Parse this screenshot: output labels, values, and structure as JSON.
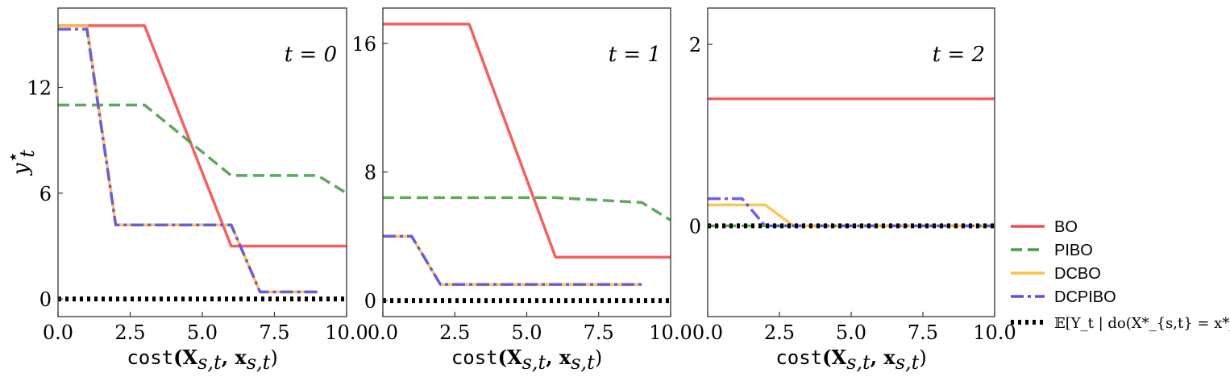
{
  "chart_data": {
    "type": "line",
    "legend_position": "bottom-right, outside panels",
    "legend": [
      {
        "key": "BO",
        "label": "BO",
        "color": "#f24f4f",
        "dash": "solid"
      },
      {
        "key": "PIBO",
        "label": "PIBO",
        "color": "#4b9e47",
        "dash": "dashed"
      },
      {
        "key": "DCBO",
        "label": "DCBO",
        "color": "#ffbf47",
        "dash": "solid"
      },
      {
        "key": "DCPIBO",
        "label": "DCPIBO",
        "color": "#5a50e8",
        "dash": "dashdot"
      },
      {
        "key": "expectation",
        "label": "𝔼[Y_t | do(X*_{s,t} = x*_{s,t})]",
        "color": "#000000",
        "dash": "dotted"
      }
    ],
    "xlabel_func": "cost",
    "xlabel_args": "(X",
    "xlabel_sub": "s,t",
    "xlabel_mid": ", x",
    "xlabel_end": ")",
    "ylabel": "y",
    "ylabel_sup": "⋆",
    "ylabel_sub": "t",
    "panels": [
      {
        "label": "t = 0",
        "xlim": [
          0,
          10
        ],
        "ylim": [
          -1.0,
          16.5
        ],
        "xticks": [
          "0.0",
          "2.5",
          "5.0",
          "7.5",
          "10.0"
        ],
        "yticks": [
          0,
          6,
          12
        ],
        "ytick_labels": [
          "0",
          "6",
          "12"
        ],
        "series": {
          "BO": {
            "x": [
              0,
              3,
              6,
              10
            ],
            "y": [
              15.5,
              15.5,
              3.0,
              3.0
            ]
          },
          "PIBO": {
            "x": [
              0,
              3,
              6,
              9,
              10
            ],
            "y": [
              11.0,
              11.0,
              7.0,
              7.0,
              6.0
            ]
          },
          "DCBO": {
            "x": [
              0,
              1,
              2,
              6,
              7,
              9
            ],
            "y": [
              15.5,
              15.5,
              4.2,
              4.2,
              0.4,
              0.4
            ]
          },
          "DCPIBO": {
            "x": [
              0,
              1,
              2,
              6,
              7,
              9
            ],
            "y": [
              15.3,
              15.3,
              4.2,
              4.2,
              0.4,
              0.4
            ]
          },
          "expectation": {
            "x": [
              0,
              10
            ],
            "y": [
              0,
              0
            ]
          }
        }
      },
      {
        "label": "t = 1",
        "xlim": [
          0,
          10
        ],
        "ylim": [
          -1.0,
          18.2
        ],
        "xticks": [
          "0.0",
          "2.5",
          "5.0",
          "7.5",
          "10.0"
        ],
        "yticks": [
          0,
          8,
          16
        ],
        "ytick_labels": [
          "0",
          "8",
          "16"
        ],
        "series": {
          "BO": {
            "x": [
              0,
              3,
              6,
              10
            ],
            "y": [
              17.2,
              17.2,
              2.7,
              2.7
            ]
          },
          "PIBO": {
            "x": [
              0,
              6,
              9,
              10
            ],
            "y": [
              6.4,
              6.4,
              6.1,
              5.0
            ]
          },
          "DCBO": {
            "x": [
              0,
              1,
              2,
              9
            ],
            "y": [
              4.0,
              4.0,
              1.0,
              1.0
            ]
          },
          "DCPIBO": {
            "x": [
              0,
              1,
              2,
              9
            ],
            "y": [
              4.0,
              4.0,
              1.0,
              1.0
            ]
          },
          "expectation": {
            "x": [
              0,
              10
            ],
            "y": [
              0,
              0
            ]
          }
        }
      },
      {
        "label": "t = 2",
        "xlim": [
          0,
          10
        ],
        "ylim": [
          -1.0,
          2.4
        ],
        "xticks": [
          "0.0",
          "2.5",
          "5.0",
          "7.5",
          "10.0"
        ],
        "yticks": [
          0,
          2
        ],
        "ytick_labels": [
          "0",
          "2"
        ],
        "series": {
          "BO": {
            "x": [
              0,
              10
            ],
            "y": [
              1.4,
              1.4
            ]
          },
          "PIBO": {
            "x": [
              0,
              10
            ],
            "y": [
              0.0,
              0.0
            ]
          },
          "DCBO": {
            "x": [
              0,
              2,
              3,
              10
            ],
            "y": [
              0.23,
              0.23,
              0.0,
              0.0
            ]
          },
          "DCPIBO": {
            "x": [
              0,
              1.2,
              2,
              10
            ],
            "y": [
              0.3,
              0.3,
              0.0,
              0.0
            ]
          },
          "expectation": {
            "x": [
              0,
              10
            ],
            "y": [
              0,
              0
            ]
          }
        }
      }
    ]
  }
}
